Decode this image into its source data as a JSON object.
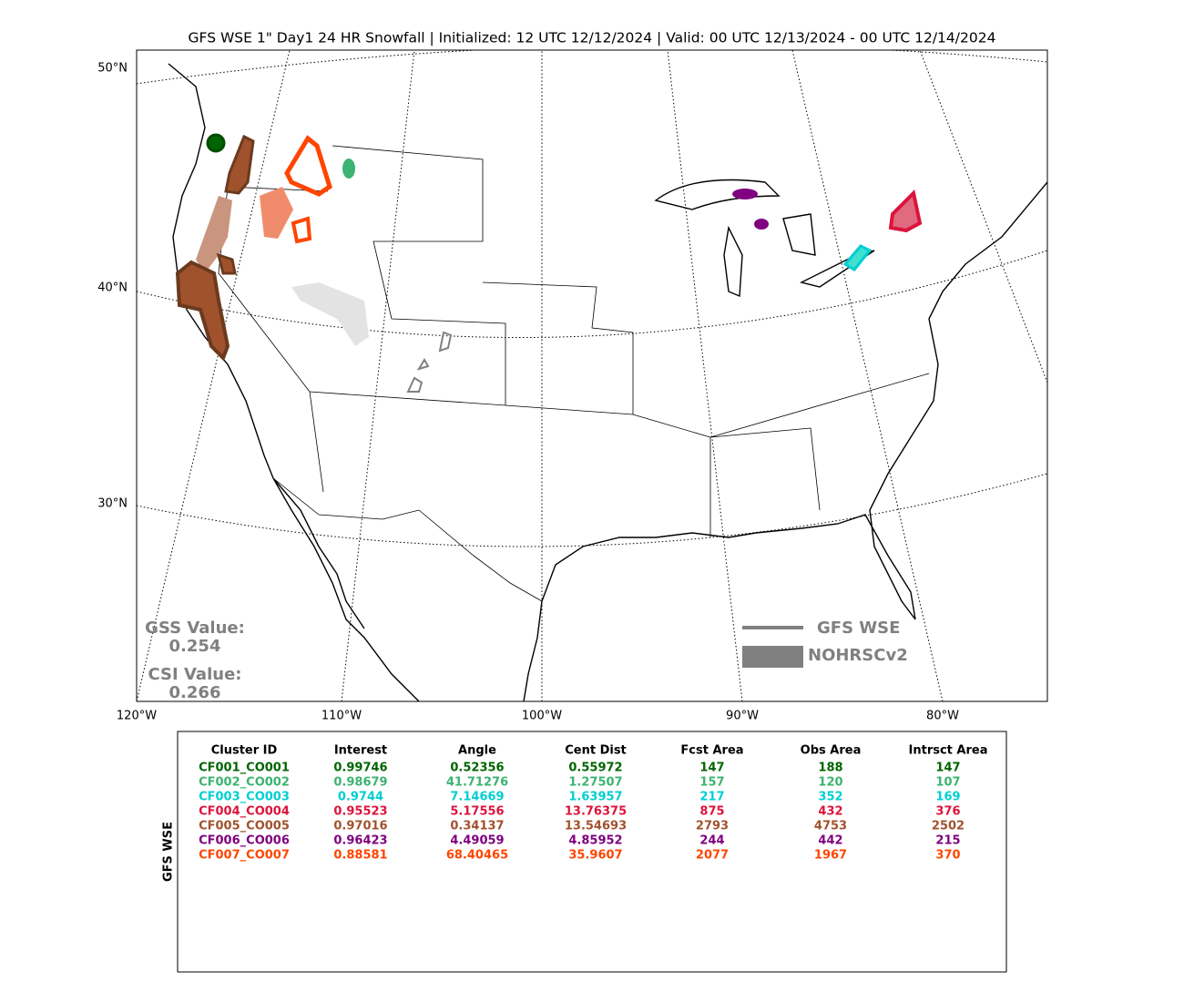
{
  "title": "GFS WSE 1\" Day1 24 HR Snowfall | Initialized: 12 UTC 12/12/2024 | Valid: 00 UTC 12/13/2024 - 00 UTC 12/14/2024",
  "map": {
    "lat_labels": [
      "50°N",
      "40°N",
      "30°N"
    ],
    "lon_labels": [
      "120°W",
      "110°W",
      "100°W",
      "90°W",
      "80°W"
    ],
    "gss_label": "GSS Value:",
    "gss_value": "0.254",
    "csi_label": "CSI Value:",
    "csi_value": "0.266",
    "legend": [
      "GFS WSE",
      "NOHRSCv2"
    ]
  },
  "table": {
    "side_label": "GFS WSE",
    "header": [
      "Cluster ID",
      "Interest",
      "Angle",
      "Cent Dist",
      "Fcst Area",
      "Obs Area",
      "Intrsct Area"
    ],
    "row_colors": [
      "#006400",
      "#3cb371",
      "#00ced1",
      "#dc143c",
      "#a0522d",
      "#800080",
      "#ff4500"
    ],
    "rows": [
      [
        "CF001_CO001",
        "0.99746",
        "0.52356",
        "0.55972",
        "147",
        "188",
        "147"
      ],
      [
        "CF002_CO002",
        "0.98679",
        "41.71276",
        "1.27507",
        "157",
        "120",
        "107"
      ],
      [
        "CF003_CO003",
        "0.9744",
        "7.14669",
        "1.63957",
        "217",
        "352",
        "169"
      ],
      [
        "CF004_CO004",
        "0.95523",
        "5.17556",
        "13.76375",
        "875",
        "432",
        "376"
      ],
      [
        "CF005_CO005",
        "0.97016",
        "0.34137",
        "13.54693",
        "2793",
        "4753",
        "2502"
      ],
      [
        "CF006_CO006",
        "0.96423",
        "4.49059",
        "4.85952",
        "244",
        "442",
        "215"
      ],
      [
        "CF007_CO007",
        "0.88581",
        "68.40465",
        "35.9607",
        "2077",
        "1967",
        "370"
      ]
    ]
  }
}
